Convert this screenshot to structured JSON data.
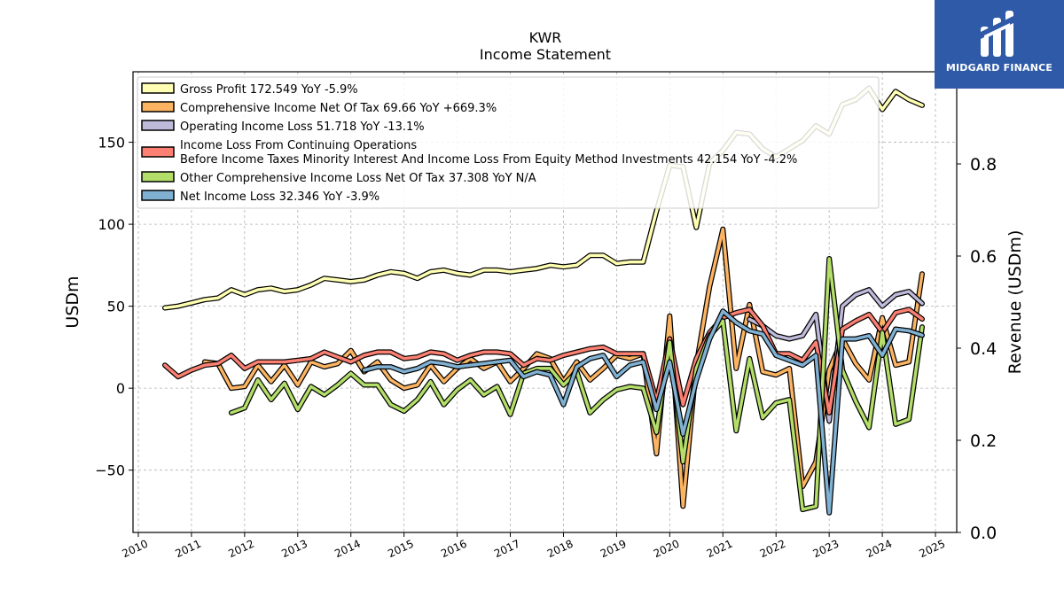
{
  "brand": {
    "name": "MIDGARD FINANCE",
    "color": "#2f5aa8",
    "icon": "midgard-logo-icon"
  },
  "chart_data": {
    "type": "line",
    "title": "KWR",
    "subtitle": "Income Statement",
    "ylabel_left": "USDm",
    "ylabel_right": "Revenue (USDm)",
    "ylim_left": [
      -88,
      193
    ],
    "ylim_right": [
      0.0,
      1.0
    ],
    "yticks_left": [
      "−50",
      "0",
      "50",
      "100",
      "150"
    ],
    "yticks_left_values": [
      -50,
      0,
      50,
      100,
      150
    ],
    "yticks_right": [
      "0.0",
      "0.2",
      "0.4",
      "0.6",
      "0.8"
    ],
    "yticks_right_values": [
      0.0,
      0.2,
      0.4,
      0.6,
      0.8
    ],
    "xlim": [
      2009.9,
      2025.4
    ],
    "xticks": [
      "2010",
      "2011",
      "2012",
      "2013",
      "2014",
      "2015",
      "2016",
      "2017",
      "2018",
      "2019",
      "2020",
      "2021",
      "2022",
      "2023",
      "2024",
      "2025"
    ],
    "grid": true,
    "legend_position": "upper-left",
    "series": [
      {
        "name": "Gross Profit",
        "legend": "Gross Profit  172.549 YoY -5.9%",
        "color": "#ffffb3",
        "x": [
          2010.5,
          2010.75,
          2011.0,
          2011.25,
          2011.5,
          2011.75,
          2012.0,
          2012.25,
          2012.5,
          2012.75,
          2013.0,
          2013.25,
          2013.5,
          2013.75,
          2014.0,
          2014.25,
          2014.5,
          2014.75,
          2015.0,
          2015.25,
          2015.5,
          2015.75,
          2016.0,
          2016.25,
          2016.5,
          2016.75,
          2017.0,
          2017.25,
          2017.5,
          2017.75,
          2018.0,
          2018.25,
          2018.5,
          2018.75,
          2019.0,
          2019.25,
          2019.5,
          2019.75,
          2020.0,
          2020.25,
          2020.5,
          2020.75,
          2021.0,
          2021.25,
          2021.5,
          2021.75,
          2022.0,
          2022.25,
          2022.5,
          2022.75,
          2023.0,
          2023.25,
          2023.5,
          2023.75,
          2024.0,
          2024.25,
          2024.5,
          2024.75
        ],
        "y": [
          49,
          50,
          52,
          54,
          55,
          60,
          57,
          60,
          61,
          59,
          60,
          63,
          67,
          66,
          65,
          66,
          69,
          71,
          70,
          67,
          71,
          72,
          70,
          69,
          72,
          72,
          71,
          72,
          73,
          75,
          74,
          75,
          81,
          81,
          76,
          77,
          77,
          108,
          136,
          135,
          98,
          137,
          145,
          156,
          155,
          146,
          141,
          146,
          151,
          160,
          155,
          173,
          176,
          183,
          170,
          181,
          176,
          172.5
        ]
      },
      {
        "name": "Comprehensive Income Net Of Tax",
        "legend": "Comprehensive Income Net Of Tax  69.66 YoY +669.3%",
        "color": "#fdb462",
        "x": [
          2011.25,
          2011.5,
          2011.75,
          2012.0,
          2012.25,
          2012.5,
          2012.75,
          2013.0,
          2013.25,
          2013.5,
          2013.75,
          2014.0,
          2014.25,
          2014.5,
          2014.75,
          2015.0,
          2015.25,
          2015.5,
          2015.75,
          2016.0,
          2016.25,
          2016.5,
          2016.75,
          2017.0,
          2017.25,
          2017.5,
          2017.75,
          2018.0,
          2018.25,
          2018.5,
          2018.75,
          2019.0,
          2019.25,
          2019.5,
          2019.75,
          2020.0,
          2020.25,
          2020.5,
          2020.75,
          2021.0,
          2021.25,
          2021.5,
          2021.75,
          2022.0,
          2022.25,
          2022.5,
          2022.75,
          2023.0,
          2023.25,
          2023.5,
          2023.75,
          2024.0,
          2024.25,
          2024.5,
          2024.75
        ],
        "y": [
          16,
          15,
          0,
          1,
          14,
          4,
          14,
          2,
          16,
          13,
          15,
          23,
          10,
          16,
          5,
          0,
          2,
          14,
          4,
          12,
          18,
          12,
          16,
          4,
          12,
          21,
          18,
          4,
          16,
          5,
          12,
          20,
          18,
          21,
          -40,
          44,
          -72,
          14,
          62,
          97,
          12,
          51,
          10,
          8,
          12,
          -60,
          -45,
          11,
          30,
          15,
          5,
          43,
          14,
          16,
          69.7
        ]
      },
      {
        "name": "Operating Income Loss",
        "legend": "Operating Income Loss  51.718 YoY -13.1%",
        "color": "#bebada",
        "x": [
          2021.5,
          2021.75,
          2022.0,
          2022.25,
          2022.5,
          2022.75,
          2023.0,
          2023.25,
          2023.5,
          2023.75,
          2024.0,
          2024.25,
          2024.5,
          2024.75
        ],
        "y": [
          42,
          38,
          32,
          30,
          32,
          45,
          -20,
          50,
          57,
          60,
          50,
          57,
          59,
          51.7
        ]
      },
      {
        "name": "Income Loss From Continuing Operations Before Income Taxes Minority Interest And Income Loss From Equity Method Investments",
        "legend": "Income Loss From Continuing Operations",
        "legend2": "Before Income Taxes Minority Interest And Income Loss From Equity Method Investments  42.154 YoY -4.2%",
        "color": "#fb8072",
        "x": [
          2010.5,
          2010.75,
          2011.0,
          2011.25,
          2011.5,
          2011.75,
          2012.0,
          2012.25,
          2012.5,
          2012.75,
          2013.0,
          2013.25,
          2013.5,
          2013.75,
          2014.0,
          2014.25,
          2014.5,
          2014.75,
          2015.0,
          2015.25,
          2015.5,
          2015.75,
          2016.0,
          2016.25,
          2016.5,
          2016.75,
          2017.0,
          2017.25,
          2017.5,
          2017.75,
          2018.0,
          2018.25,
          2018.5,
          2018.75,
          2019.0,
          2019.25,
          2019.5,
          2019.75,
          2020.0,
          2020.25,
          2020.5,
          2020.75,
          2021.0,
          2021.25,
          2021.5,
          2021.75,
          2022.0,
          2022.25,
          2022.5,
          2022.75,
          2023.0,
          2023.25,
          2023.5,
          2023.75,
          2024.0,
          2024.25,
          2024.5,
          2024.75
        ],
        "y": [
          14,
          7,
          11,
          14,
          15,
          20,
          12,
          16,
          16,
          16,
          17,
          18,
          22,
          19,
          16,
          20,
          22,
          22,
          18,
          19,
          22,
          21,
          17,
          20,
          22,
          22,
          21,
          14,
          18,
          17,
          20,
          22,
          24,
          25,
          21,
          21,
          21,
          -8,
          30,
          -10,
          18,
          34,
          43,
          46,
          48,
          38,
          21,
          21,
          17,
          28,
          -15,
          36,
          41,
          45,
          34,
          46,
          48,
          42.2
        ]
      },
      {
        "name": "Other Comprehensive Income Loss Net Of Tax",
        "legend": "Other Comprehensive Income Loss Net Of Tax  37.308 YoY N/A",
        "color": "#b3de69",
        "x": [
          2011.75,
          2012.0,
          2012.25,
          2012.5,
          2012.75,
          2013.0,
          2013.25,
          2013.5,
          2013.75,
          2014.0,
          2014.25,
          2014.5,
          2014.75,
          2015.0,
          2015.25,
          2015.5,
          2015.75,
          2016.0,
          2016.25,
          2016.5,
          2016.75,
          2017.0,
          2017.25,
          2017.5,
          2017.75,
          2018.0,
          2018.25,
          2018.5,
          2018.75,
          2019.0,
          2019.25,
          2019.5,
          2019.75,
          2020.0,
          2020.25,
          2020.5,
          2020.75,
          2021.0,
          2021.25,
          2021.5,
          2021.75,
          2022.0,
          2022.25,
          2022.5,
          2022.75,
          2023.0,
          2023.25,
          2023.5,
          2023.75,
          2024.0,
          2024.25,
          2024.5,
          2024.75
        ],
        "y": [
          -15,
          -12,
          5,
          -7,
          3,
          -13,
          1,
          -4,
          2,
          9,
          2,
          2,
          -10,
          -14,
          -7,
          4,
          -10,
          -1,
          5,
          -4,
          1,
          -16,
          9,
          12,
          12,
          2,
          10,
          -15,
          -7,
          -1,
          1,
          0,
          -27,
          28,
          -45,
          12,
          32,
          41,
          -26,
          18,
          -18,
          -9,
          -7,
          -74,
          -72,
          79,
          11,
          -8,
          -24,
          34,
          -22,
          -19,
          37.3
        ]
      },
      {
        "name": "Net Income Loss",
        "legend": "Net Income Loss  32.346 YoY -3.9%",
        "color": "#80b1d3",
        "x": [
          2014.25,
          2014.5,
          2014.75,
          2015.0,
          2015.25,
          2015.5,
          2015.75,
          2016.0,
          2016.25,
          2016.5,
          2016.75,
          2017.0,
          2017.25,
          2017.5,
          2017.75,
          2018.0,
          2018.25,
          2018.5,
          2018.75,
          2019.0,
          2019.25,
          2019.5,
          2019.75,
          2020.0,
          2020.25,
          2020.5,
          2020.75,
          2021.0,
          2021.25,
          2021.5,
          2021.75,
          2022.0,
          2022.25,
          2022.5,
          2022.75,
          2023.0,
          2023.25,
          2023.5,
          2023.75,
          2024.0,
          2024.25,
          2024.5,
          2024.75
        ],
        "y": [
          11,
          13,
          13,
          10,
          12,
          16,
          15,
          13,
          14,
          15,
          16,
          17,
          7,
          10,
          8,
          -10,
          13,
          18,
          20,
          7,
          14,
          16,
          -13,
          16,
          -28,
          5,
          30,
          47,
          40,
          35,
          33,
          20,
          17,
          14,
          20,
          -76,
          30,
          30,
          32,
          20,
          36,
          35,
          32.3
        ]
      }
    ]
  }
}
